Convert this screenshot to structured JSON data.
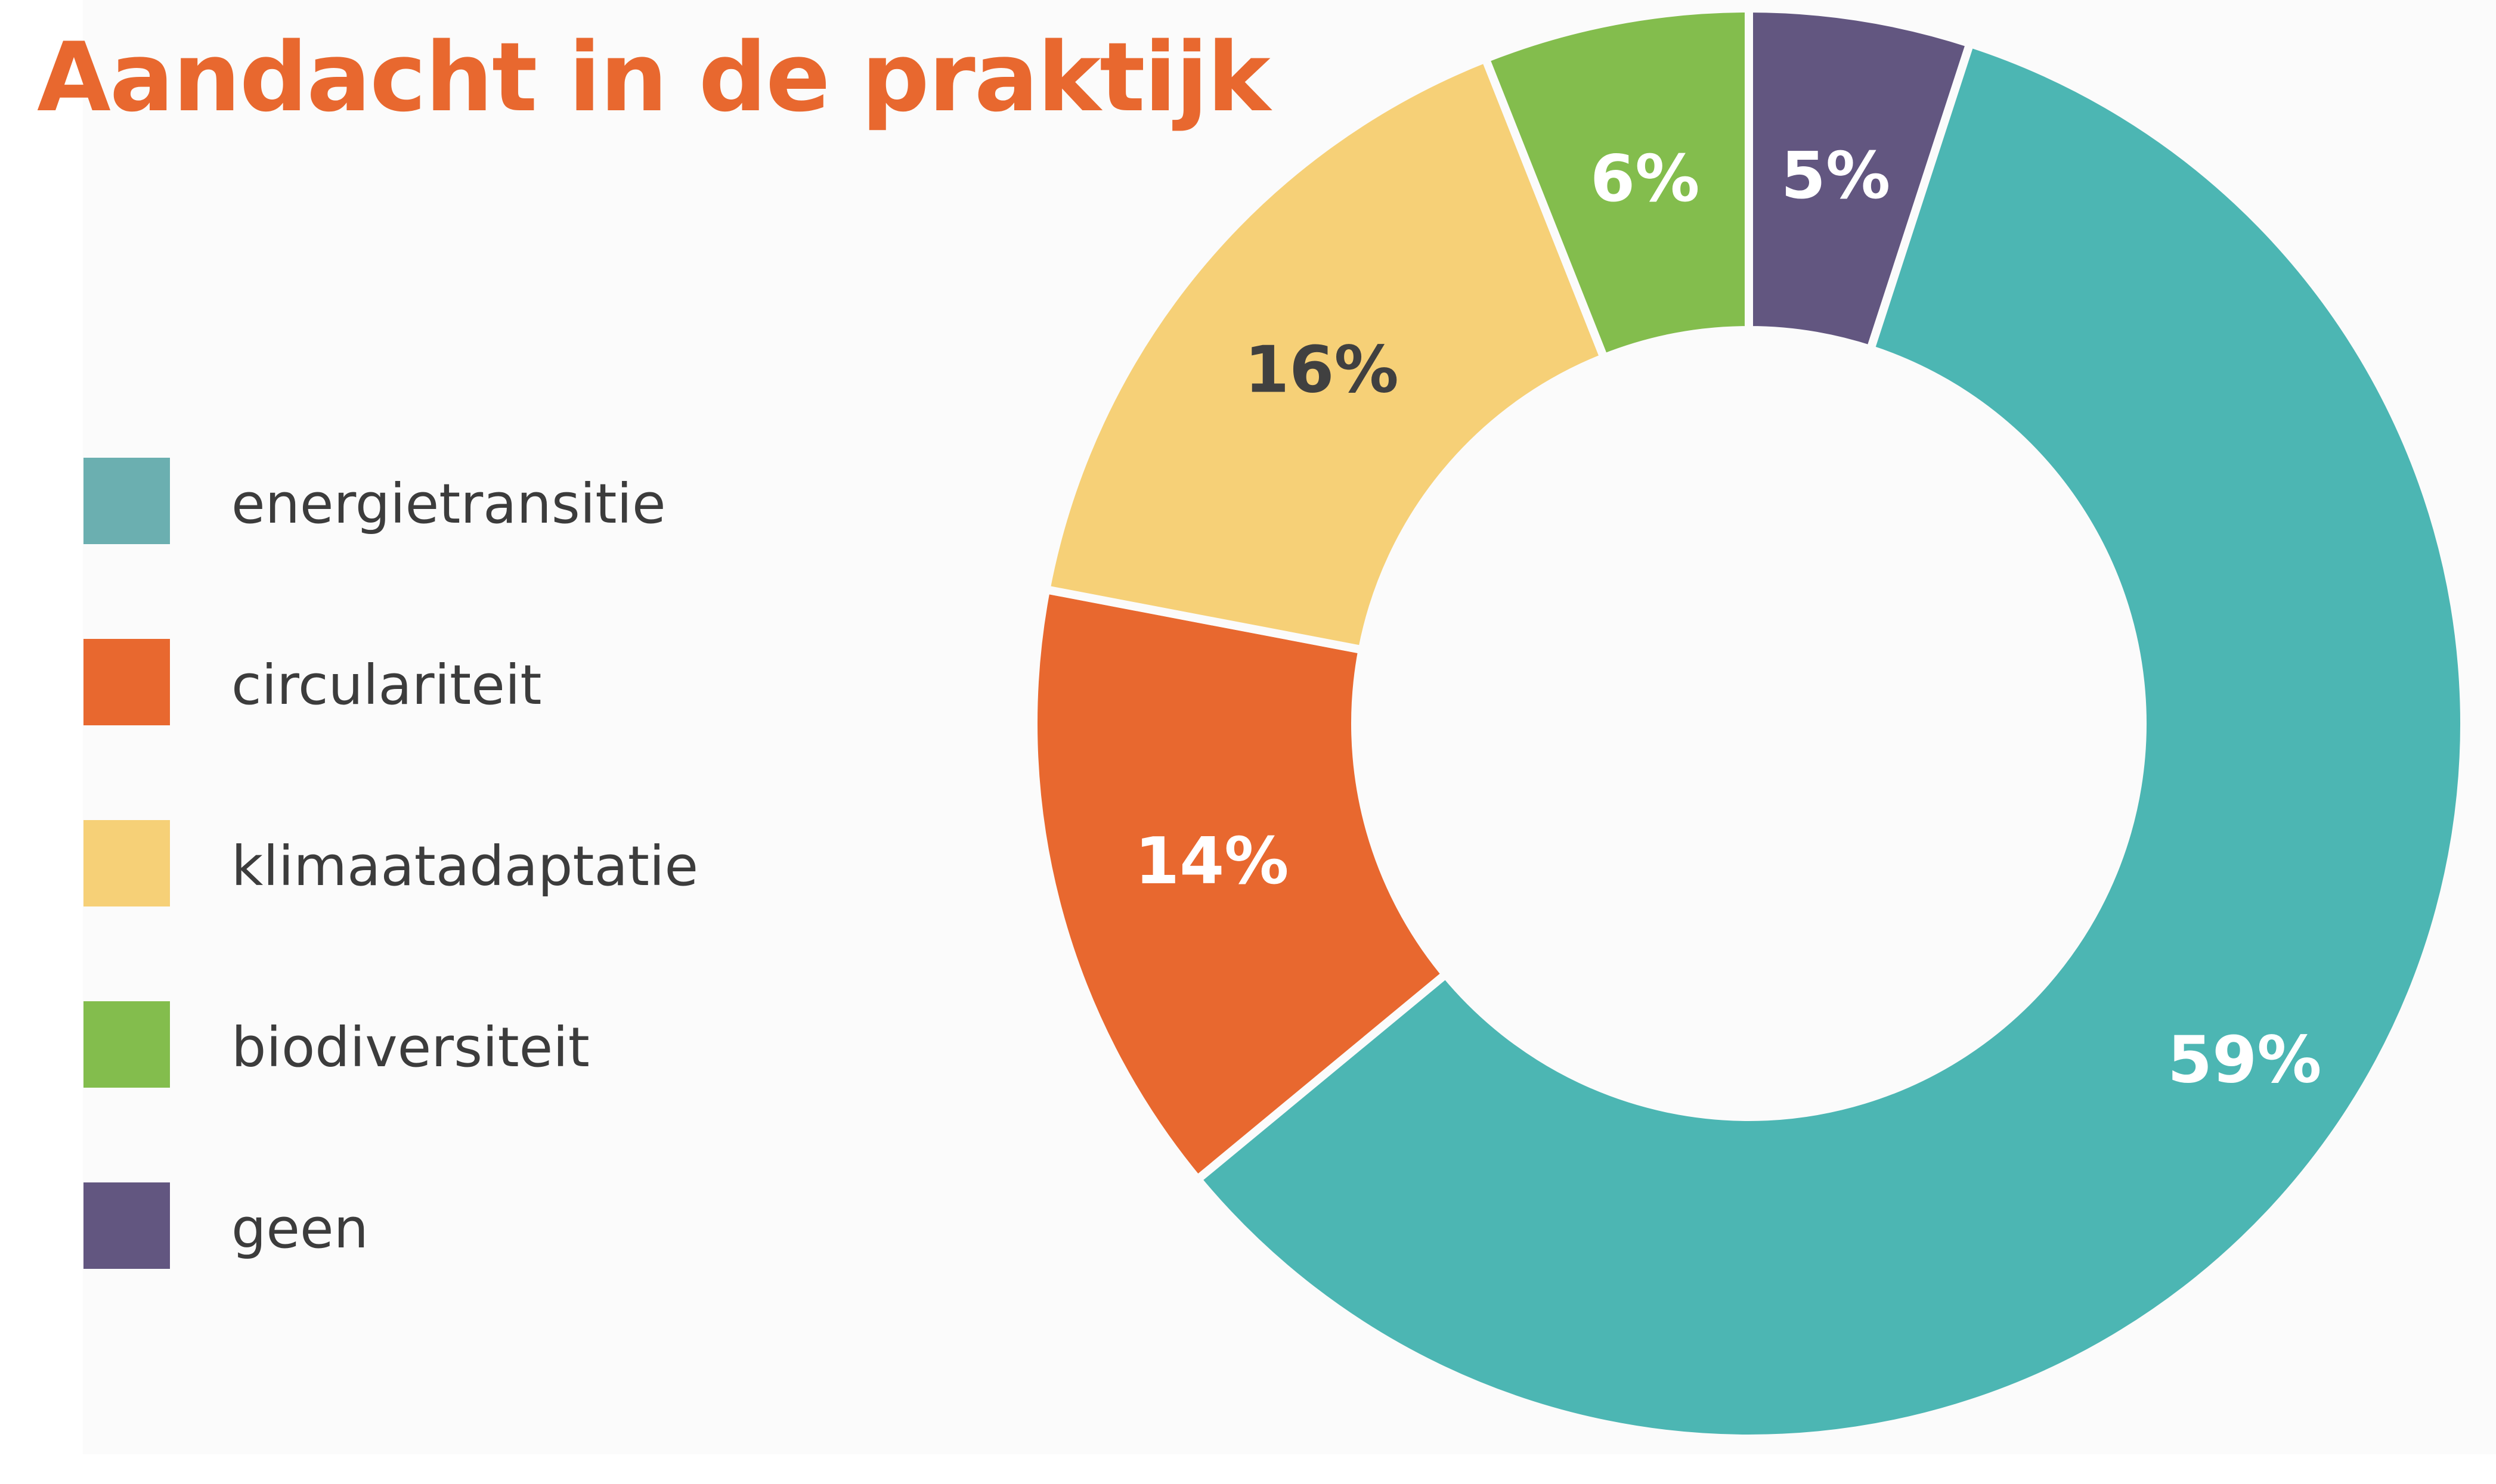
{
  "colors": {
    "title": "#e8682f",
    "separator": "#fbfbfb"
  },
  "chart_data": {
    "type": "pie",
    "title": "Aandacht in de praktijk",
    "donut": true,
    "legend_position": "left",
    "slices": [
      {
        "label": "energietransitie",
        "value": 59,
        "value_label": "59%",
        "color": "#4cb6b3",
        "legend_color": "#6bafb0",
        "label_color": "#ffffff"
      },
      {
        "label": "circulariteit",
        "value": 14,
        "value_label": "14%",
        "color": "#e8682f",
        "legend_color": "#e8682f",
        "label_color": "#ffffff"
      },
      {
        "label": "klimaatadaptatie",
        "value": 16,
        "value_label": "16%",
        "color": "#f6d077",
        "legend_color": "#f6d077",
        "label_color": "#404040"
      },
      {
        "label": "biodiversiteit",
        "value": 6,
        "value_label": "6%",
        "color": "#83bd4d",
        "legend_color": "#83bd4d",
        "label_color": "#ffffff"
      },
      {
        "label": "geen",
        "value": 5,
        "value_label": "5%",
        "color": "#625680",
        "legend_color": "#625680",
        "label_color": "#ffffff"
      }
    ]
  }
}
